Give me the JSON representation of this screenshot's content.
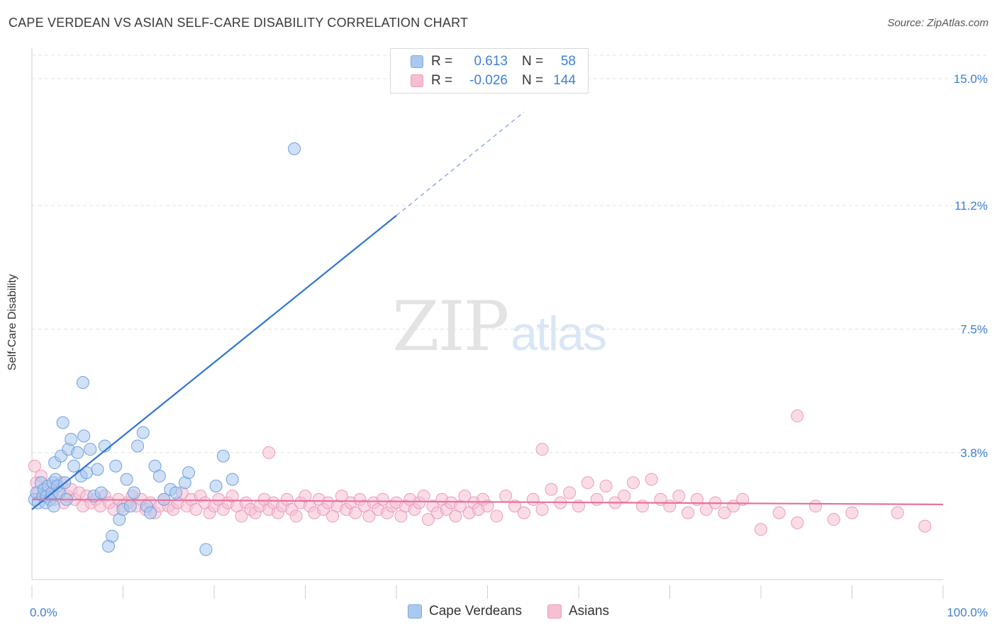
{
  "header": {
    "title": "CAPE VERDEAN VS ASIAN SELF-CARE DISABILITY CORRELATION CHART",
    "source": "Source: ZipAtlas.com"
  },
  "legend": {
    "rows": [
      {
        "r_label": "R =",
        "r_value": "0.613",
        "n_label": "N =",
        "n_value": "58"
      },
      {
        "r_label": "R =",
        "r_value": "-0.026",
        "n_label": "N =",
        "n_value": "144"
      }
    ]
  },
  "bottom_legend": [
    "Cape Verdeans",
    "Asians"
  ],
  "watermark": {
    "zip": "ZIP",
    "atlas": "atlas"
  },
  "colors": {
    "blue_fill": "#a9c9f0",
    "blue_stroke": "#6fa0de",
    "blue_line": "#3074d1",
    "pink_fill": "#f6bfd3",
    "pink_stroke": "#ec9bb9",
    "pink_line": "#e9709c",
    "tick_label": "#3d7fd6",
    "grid": "#e4e4e4"
  },
  "chart_data": {
    "type": "scatter",
    "title": "CAPE VERDEAN VS ASIAN SELF-CARE DISABILITY CORRELATION CHART",
    "xlabel": "",
    "ylabel": "Self-Care Disability",
    "x_unit": "%",
    "y_unit": "%",
    "xlim": [
      0,
      100
    ],
    "ylim": [
      0,
      15.7
    ],
    "x_tick_labels": [
      "0.0%",
      "100.0%"
    ],
    "y_ticks": [
      3.8,
      7.5,
      11.2,
      15.0
    ],
    "y_tick_labels": [
      "3.8%",
      "7.5%",
      "11.2%",
      "15.0%"
    ],
    "grid": true,
    "legend_position": "top-center",
    "series": [
      {
        "name": "Cape Verdeans",
        "color": "#a9c9f0",
        "stats": {
          "R": 0.613,
          "N": 58
        },
        "trend": {
          "x0": 0,
          "y0": 2.1,
          "x1": 40,
          "y1": 10.9,
          "dash_to_x": 54,
          "dash_to_y": 14.0
        },
        "points": [
          [
            0.3,
            2.4
          ],
          [
            0.5,
            2.6
          ],
          [
            0.7,
            2.3
          ],
          [
            1.0,
            2.9
          ],
          [
            1.2,
            2.5
          ],
          [
            1.3,
            2.7
          ],
          [
            1.5,
            2.3
          ],
          [
            1.6,
            2.5
          ],
          [
            1.8,
            2.8
          ],
          [
            2.0,
            2.4
          ],
          [
            2.2,
            2.6
          ],
          [
            2.3,
            2.9
          ],
          [
            2.4,
            2.2
          ],
          [
            2.5,
            3.5
          ],
          [
            2.6,
            3.0
          ],
          [
            2.8,
            2.8
          ],
          [
            3.0,
            2.6
          ],
          [
            3.2,
            3.7
          ],
          [
            3.4,
            4.7
          ],
          [
            3.6,
            2.9
          ],
          [
            3.8,
            2.4
          ],
          [
            4.0,
            3.9
          ],
          [
            4.3,
            4.2
          ],
          [
            4.6,
            3.4
          ],
          [
            5.0,
            3.8
          ],
          [
            5.4,
            3.1
          ],
          [
            5.7,
            4.3
          ],
          [
            6.0,
            3.2
          ],
          [
            6.4,
            3.9
          ],
          [
            6.8,
            2.5
          ],
          [
            7.2,
            3.3
          ],
          [
            7.6,
            2.6
          ],
          [
            8.0,
            4.0
          ],
          [
            8.4,
            1.0
          ],
          [
            8.8,
            1.3
          ],
          [
            9.2,
            3.4
          ],
          [
            9.6,
            1.8
          ],
          [
            10.0,
            2.1
          ],
          [
            10.4,
            3.0
          ],
          [
            10.8,
            2.2
          ],
          [
            11.2,
            2.6
          ],
          [
            11.6,
            4.0
          ],
          [
            12.2,
            4.4
          ],
          [
            12.6,
            2.2
          ],
          [
            13.0,
            2.0
          ],
          [
            13.5,
            3.4
          ],
          [
            14.0,
            3.1
          ],
          [
            14.5,
            2.4
          ],
          [
            15.2,
            2.7
          ],
          [
            15.8,
            2.6
          ],
          [
            16.8,
            2.9
          ],
          [
            17.2,
            3.2
          ],
          [
            19.1,
            0.9
          ],
          [
            20.2,
            2.8
          ],
          [
            21.0,
            3.7
          ],
          [
            22.0,
            3.0
          ],
          [
            5.6,
            5.9
          ],
          [
            28.8,
            12.9
          ]
        ]
      },
      {
        "name": "Asians",
        "color": "#f6bfd3",
        "stats": {
          "R": -0.026,
          "N": 144
        },
        "trend": {
          "x0": 0,
          "y0": 2.4,
          "x1": 100,
          "y1": 2.25
        },
        "points": [
          [
            0.3,
            3.4
          ],
          [
            0.5,
            2.9
          ],
          [
            0.7,
            2.6
          ],
          [
            1.0,
            3.1
          ],
          [
            1.4,
            2.7
          ],
          [
            1.8,
            2.5
          ],
          [
            2.2,
            2.8
          ],
          [
            2.5,
            2.4
          ],
          [
            2.8,
            2.6
          ],
          [
            3.2,
            2.9
          ],
          [
            3.5,
            2.3
          ],
          [
            3.9,
            2.5
          ],
          [
            4.3,
            2.7
          ],
          [
            4.7,
            2.4
          ],
          [
            5.2,
            2.6
          ],
          [
            5.6,
            2.2
          ],
          [
            6.0,
            2.5
          ],
          [
            6.5,
            2.3
          ],
          [
            7.0,
            2.4
          ],
          [
            7.5,
            2.2
          ],
          [
            8.0,
            2.5
          ],
          [
            8.5,
            2.3
          ],
          [
            9.0,
            2.1
          ],
          [
            9.5,
            2.4
          ],
          [
            10.0,
            2.2
          ],
          [
            10.5,
            2.3
          ],
          [
            11.0,
            2.5
          ],
          [
            11.5,
            2.2
          ],
          [
            12.0,
            2.4
          ],
          [
            12.5,
            2.1
          ],
          [
            13.0,
            2.3
          ],
          [
            13.5,
            2.0
          ],
          [
            14.0,
            2.2
          ],
          [
            14.5,
            2.4
          ],
          [
            15.0,
            2.2
          ],
          [
            15.5,
            2.1
          ],
          [
            16.0,
            2.3
          ],
          [
            16.5,
            2.6
          ],
          [
            17.0,
            2.2
          ],
          [
            17.5,
            2.4
          ],
          [
            18.0,
            2.1
          ],
          [
            18.5,
            2.5
          ],
          [
            19.0,
            2.3
          ],
          [
            19.5,
            2.0
          ],
          [
            20.0,
            2.2
          ],
          [
            20.5,
            2.4
          ],
          [
            21.0,
            2.1
          ],
          [
            21.5,
            2.3
          ],
          [
            22.0,
            2.5
          ],
          [
            22.5,
            2.2
          ],
          [
            23.0,
            1.9
          ],
          [
            23.5,
            2.3
          ],
          [
            24.0,
            2.1
          ],
          [
            24.5,
            2.0
          ],
          [
            25.0,
            2.2
          ],
          [
            25.5,
            2.4
          ],
          [
            26.0,
            2.1
          ],
          [
            26.5,
            2.3
          ],
          [
            27.0,
            2.0
          ],
          [
            27.5,
            2.2
          ],
          [
            28.0,
            2.4
          ],
          [
            28.5,
            2.1
          ],
          [
            29.0,
            1.9
          ],
          [
            29.5,
            2.3
          ],
          [
            30.0,
            2.5
          ],
          [
            30.5,
            2.2
          ],
          [
            31.0,
            2.0
          ],
          [
            31.5,
            2.4
          ],
          [
            32.0,
            2.1
          ],
          [
            32.5,
            2.3
          ],
          [
            33.0,
            1.9
          ],
          [
            33.5,
            2.2
          ],
          [
            34.0,
            2.5
          ],
          [
            34.5,
            2.1
          ],
          [
            35.0,
            2.3
          ],
          [
            35.5,
            2.0
          ],
          [
            36.0,
            2.4
          ],
          [
            36.5,
            2.2
          ],
          [
            37.0,
            1.9
          ],
          [
            37.5,
            2.3
          ],
          [
            38.0,
            2.1
          ],
          [
            38.5,
            2.4
          ],
          [
            39.0,
            2.0
          ],
          [
            39.5,
            2.2
          ],
          [
            40.0,
            2.3
          ],
          [
            40.5,
            1.9
          ],
          [
            41.0,
            2.2
          ],
          [
            41.5,
            2.4
          ],
          [
            42.0,
            2.1
          ],
          [
            42.5,
            2.3
          ],
          [
            43.0,
            2.5
          ],
          [
            43.5,
            1.8
          ],
          [
            44.0,
            2.2
          ],
          [
            44.5,
            2.0
          ],
          [
            45.0,
            2.4
          ],
          [
            45.5,
            2.1
          ],
          [
            46.0,
            2.3
          ],
          [
            46.5,
            1.9
          ],
          [
            47.0,
            2.2
          ],
          [
            47.5,
            2.5
          ],
          [
            48.0,
            2.0
          ],
          [
            48.5,
            2.3
          ],
          [
            49.0,
            2.1
          ],
          [
            49.5,
            2.4
          ],
          [
            50.0,
            2.2
          ],
          [
            51.0,
            1.9
          ],
          [
            52.0,
            2.5
          ],
          [
            53.0,
            2.2
          ],
          [
            54.0,
            2.0
          ],
          [
            55.0,
            2.4
          ],
          [
            56.0,
            2.1
          ],
          [
            57.0,
            2.7
          ],
          [
            58.0,
            2.3
          ],
          [
            59.0,
            2.6
          ],
          [
            60.0,
            2.2
          ],
          [
            61.0,
            2.9
          ],
          [
            62.0,
            2.4
          ],
          [
            63.0,
            2.8
          ],
          [
            64.0,
            2.3
          ],
          [
            65.0,
            2.5
          ],
          [
            66.0,
            2.9
          ],
          [
            67.0,
            2.2
          ],
          [
            68.0,
            3.0
          ],
          [
            69.0,
            2.4
          ],
          [
            70.0,
            2.2
          ],
          [
            71.0,
            2.5
          ],
          [
            72.0,
            2.0
          ],
          [
            73.0,
            2.4
          ],
          [
            74.0,
            2.1
          ],
          [
            75.0,
            2.3
          ],
          [
            76.0,
            2.0
          ],
          [
            77.0,
            2.2
          ],
          [
            78.0,
            2.4
          ],
          [
            80.0,
            1.5
          ],
          [
            82.0,
            2.0
          ],
          [
            84.0,
            1.7
          ],
          [
            86.0,
            2.2
          ],
          [
            88.0,
            1.8
          ],
          [
            90.0,
            2.0
          ],
          [
            95.0,
            2.0
          ],
          [
            98.0,
            1.6
          ],
          [
            84.0,
            4.9
          ],
          [
            26.0,
            3.8
          ],
          [
            56.0,
            3.9
          ]
        ]
      }
    ]
  }
}
